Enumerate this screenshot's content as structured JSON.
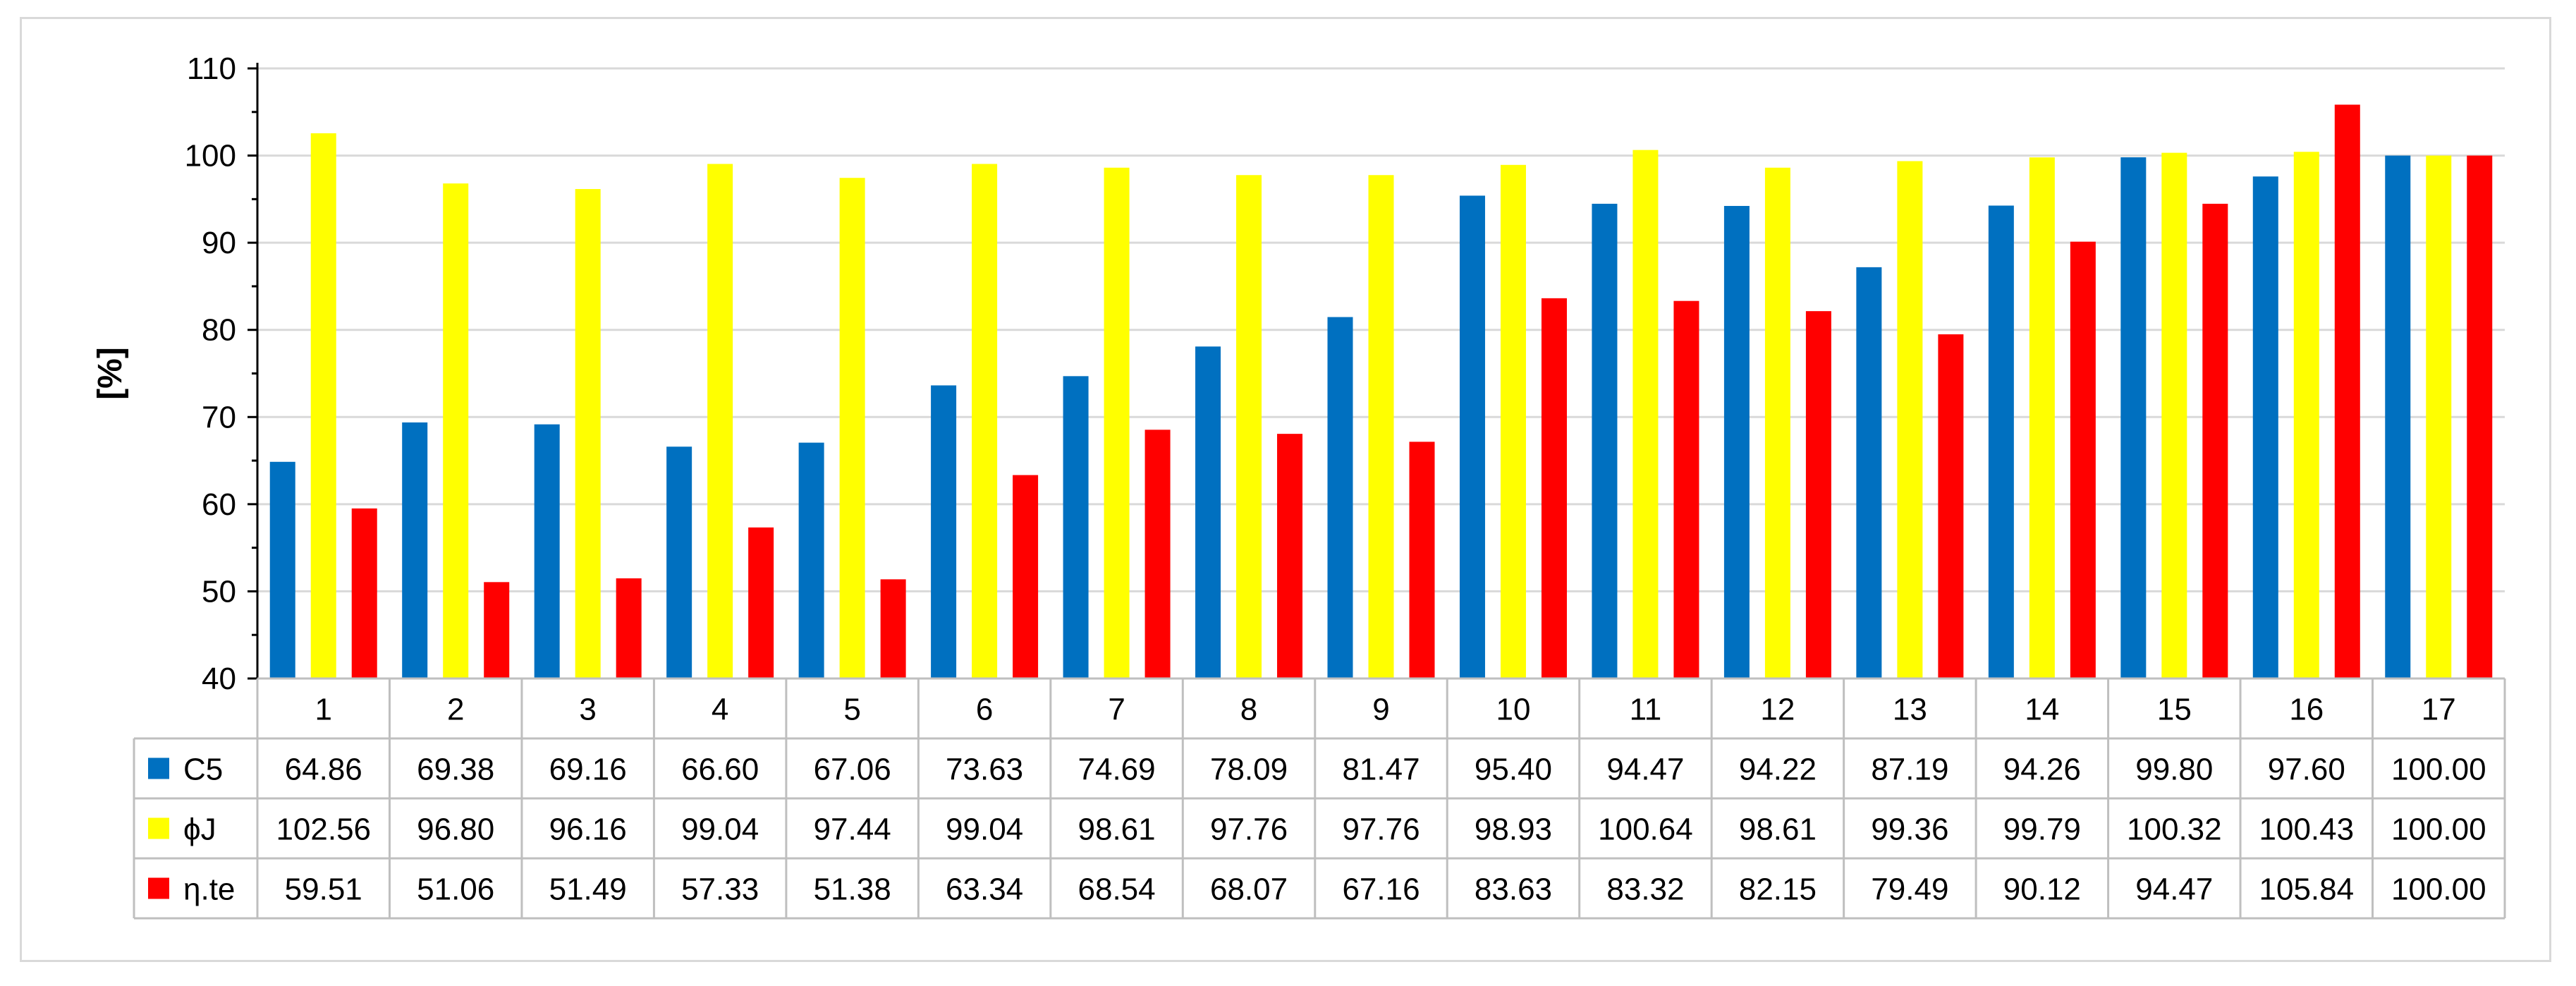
{
  "chart_data": {
    "type": "bar",
    "title": "",
    "xlabel": "",
    "ylabel": "[%]",
    "ylim": [
      40,
      110
    ],
    "yticks": [
      "40",
      "50",
      "60",
      "70",
      "80",
      "90",
      "100",
      "110"
    ],
    "grid": true,
    "legend": "data-table-left",
    "categories": [
      "1",
      "2",
      "3",
      "4",
      "5",
      "6",
      "7",
      "8",
      "9",
      "10",
      "11",
      "12",
      "13",
      "14",
      "15",
      "16",
      "17"
    ],
    "series": [
      {
        "name": "C5",
        "color": "#0070c0",
        "values": [
          64.86,
          69.38,
          69.16,
          66.6,
          67.06,
          73.63,
          74.69,
          78.09,
          81.47,
          95.4,
          94.47,
          94.22,
          87.19,
          94.26,
          99.8,
          97.6,
          100.0
        ],
        "labels": [
          "64.86",
          "69.38",
          "69.16",
          "66.60",
          "67.06",
          "73.63",
          "74.69",
          "78.09",
          "81.47",
          "95.40",
          "94.47",
          "94.22",
          "87.19",
          "94.26",
          "99.80",
          "97.60",
          "100.00"
        ]
      },
      {
        "name": "ϕJ",
        "color": "#ffff00",
        "values": [
          102.56,
          96.8,
          96.16,
          99.04,
          97.44,
          99.04,
          98.61,
          97.76,
          97.76,
          98.93,
          100.64,
          98.61,
          99.36,
          99.79,
          100.32,
          100.43,
          100.0
        ],
        "labels": [
          "102.56",
          "96.80",
          "96.16",
          "99.04",
          "97.44",
          "99.04",
          "98.61",
          "97.76",
          "97.76",
          "98.93",
          "100.64",
          "98.61",
          "99.36",
          "99.79",
          "100.32",
          "100.43",
          "100.00"
        ]
      },
      {
        "name": "η.te",
        "color": "#ff0000",
        "values": [
          59.51,
          51.06,
          51.49,
          57.33,
          51.38,
          63.34,
          68.54,
          68.07,
          67.16,
          83.63,
          83.32,
          82.15,
          79.49,
          90.12,
          94.47,
          105.84,
          100.0
        ],
        "labels": [
          "59.51",
          "51.06",
          "51.49",
          "57.33",
          "51.38",
          "63.34",
          "68.54",
          "68.07",
          "67.16",
          "83.63",
          "83.32",
          "82.15",
          "79.49",
          "90.12",
          "94.47",
          "105.84",
          "100.00"
        ]
      }
    ]
  }
}
